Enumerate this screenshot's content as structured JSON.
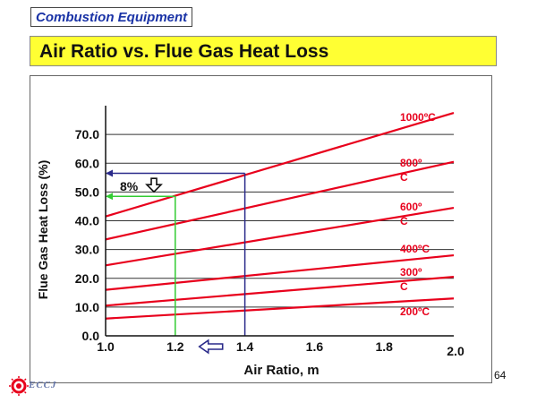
{
  "section_tag": "Combustion Equipment",
  "slide_title": "Air Ratio vs. Flue Gas Heat Loss",
  "page_number": "64",
  "logo_text": "ECCJ",
  "colors": {
    "lines": "#e8001c",
    "grid": "#333333",
    "arrow_blue": "#2a2a8a",
    "arrow_green": "#33cc33",
    "banner": "#ffff33"
  },
  "chart_data": {
    "type": "line",
    "title": "",
    "xlabel": "Air Ratio, m",
    "ylabel": "Flue Gas Heat Loss (%)",
    "xlim": [
      1.0,
      2.0
    ],
    "ylim": [
      0,
      80
    ],
    "x_ticks": [
      "1.0",
      "1.2",
      "1.4",
      "1.6",
      "1.8",
      "2.0"
    ],
    "y_ticks": [
      "0.0",
      "10.0",
      "20.0",
      "30.0",
      "40.0",
      "50.0",
      "60.0",
      "70.0"
    ],
    "grid": "horizontal",
    "series": [
      {
        "name": "1000ºC",
        "label_lines": [
          "1000ºC"
        ],
        "x": [
          1.0,
          2.0
        ],
        "y": [
          41.5,
          77.5
        ]
      },
      {
        "name": "800ºC",
        "label_lines": [
          "800º",
          "C"
        ],
        "x": [
          1.0,
          2.0
        ],
        "y": [
          33.5,
          60.5
        ]
      },
      {
        "name": "600ºC",
        "label_lines": [
          "600º",
          "C"
        ],
        "x": [
          1.0,
          2.0
        ],
        "y": [
          24.5,
          44.5
        ]
      },
      {
        "name": "400ºC",
        "label_lines": [
          "400ºC"
        ],
        "x": [
          1.0,
          2.0
        ],
        "y": [
          16.0,
          28.0
        ]
      },
      {
        "name": "300ºC",
        "label_lines": [
          "300º",
          "C"
        ],
        "x": [
          1.0,
          2.0
        ],
        "y": [
          10.5,
          20.5
        ]
      },
      {
        "name": "200ºC",
        "label_lines": [
          "200ºC"
        ],
        "x": [
          1.0,
          2.0
        ],
        "y": [
          6.0,
          13.0
        ]
      }
    ],
    "annotations": {
      "reading_1": {
        "x": 1.4,
        "y": 56.5
      },
      "reading_2": {
        "x": 1.2,
        "y": 48.5
      },
      "difference_label": "8%"
    }
  }
}
